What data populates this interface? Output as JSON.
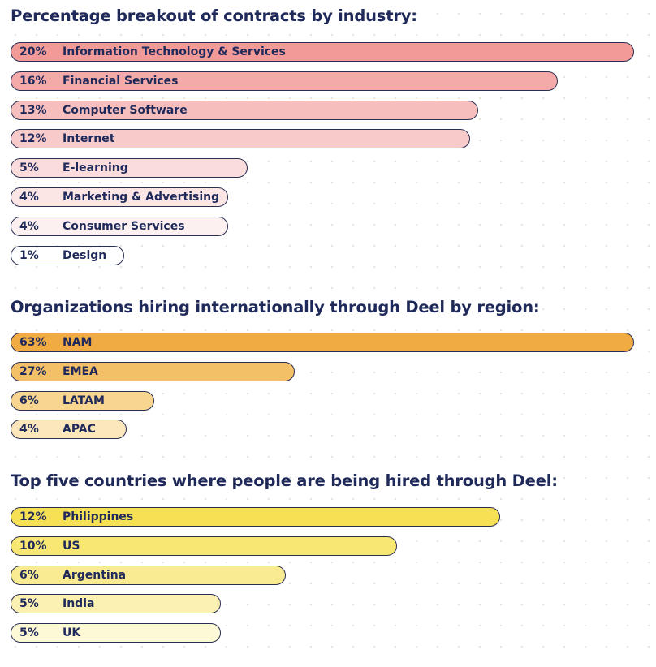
{
  "chart_data": [
    {
      "type": "bar",
      "title": "Percentage breakout of contracts by industry:",
      "colors": [
        "#f19a97",
        "#f4aaa8",
        "#f6bebd",
        "#f8cbcb",
        "#fadcdc",
        "#fce5e5",
        "#fdf0f0",
        "#ffffff"
      ],
      "items": [
        {
          "pct": "20%",
          "label": "Information Technology & Services",
          "value": 20
        },
        {
          "pct": "16%",
          "label": "Financial Services",
          "value": 16
        },
        {
          "pct": "13%",
          "label": "Computer Software",
          "value": 13
        },
        {
          "pct": "12%",
          "label": "Internet",
          "value": 12
        },
        {
          "pct": "5%",
          "label": "E-learning",
          "value": 5
        },
        {
          "pct": "4%",
          "label": "Marketing & Advertising",
          "value": 4
        },
        {
          "pct": "4%",
          "label": "Consumer Services",
          "value": 4
        },
        {
          "pct": "1%",
          "label": "Design",
          "value": 1
        }
      ]
    },
    {
      "type": "bar",
      "title": "Organizations hiring internationally through Deel by region:",
      "colors": [
        "#f0ab43",
        "#f3c067",
        "#f8d690",
        "#fce6bb"
      ],
      "items": [
        {
          "pct": "63%",
          "label": "NAM",
          "value": 63
        },
        {
          "pct": "27%",
          "label": "EMEA",
          "value": 27
        },
        {
          "pct": "6%",
          "label": "LATAM",
          "value": 6
        },
        {
          "pct": "4%",
          "label": "APAC",
          "value": 4
        }
      ]
    },
    {
      "type": "bar",
      "title": "Top five countries where people are being hired through Deel:",
      "colors": [
        "#f6e053",
        "#f8e773",
        "#f9eb92",
        "#fbf1b3",
        "#fdf8d6"
      ],
      "items": [
        {
          "pct": "12%",
          "label": "Philippines",
          "value": 12
        },
        {
          "pct": "10%",
          "label": "US",
          "value": 10
        },
        {
          "pct": "6%",
          "label": "Argentina",
          "value": 6
        },
        {
          "pct": "5%",
          "label": "India",
          "value": 5
        },
        {
          "pct": "5%",
          "label": "UK",
          "value": 5
        }
      ]
    }
  ]
}
